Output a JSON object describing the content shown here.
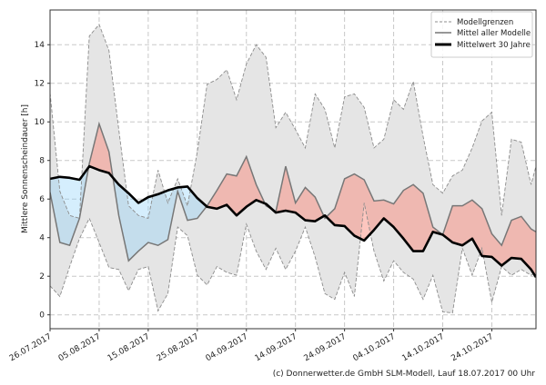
{
  "chart_data": {
    "type": "area",
    "title": "",
    "xlabel": "",
    "ylabel": "Mittlere Sonnenscheindauer [h]",
    "ylim": [
      -0.72,
      15.8
    ],
    "xlim": [
      "26.07.2017",
      "02.11.2017"
    ],
    "yticks": [
      0,
      2,
      4,
      6,
      8,
      10,
      12,
      14
    ],
    "xticks": [
      "26.07.2017",
      "05.08.2017",
      "15.08.2017",
      "25.08.2017",
      "04.09.2017",
      "14.09.2017",
      "24.09.2017",
      "04.10.2017",
      "14.10.2017",
      "24.10.2017"
    ],
    "grid": true,
    "legend_position": "top-right",
    "x": [
      "26.07.2017",
      "28.07.2017",
      "30.07.2017",
      "01.08.2017",
      "03.08.2017",
      "05.08.2017",
      "07.08.2017",
      "09.08.2017",
      "11.08.2017",
      "13.08.2017",
      "15.08.2017",
      "17.08.2017",
      "19.08.2017",
      "21.08.2017",
      "23.08.2017",
      "25.08.2017",
      "27.08.2017",
      "29.08.2017",
      "31.08.2017",
      "02.09.2017",
      "04.09.2017",
      "06.09.2017",
      "08.09.2017",
      "10.09.2017",
      "12.09.2017",
      "14.09.2017",
      "16.09.2017",
      "18.09.2017",
      "20.09.2017",
      "22.09.2017",
      "24.09.2017",
      "26.09.2017",
      "28.09.2017",
      "30.09.2017",
      "02.10.2017",
      "04.10.2017",
      "06.10.2017",
      "08.10.2017",
      "10.10.2017",
      "12.10.2017",
      "14.10.2017",
      "16.10.2017",
      "18.10.2017",
      "20.10.2017",
      "22.10.2017",
      "24.10.2017",
      "26.10.2017",
      "28.10.2017",
      "30.10.2017",
      "01.11.2017",
      "02.11.2017"
    ],
    "series": [
      {
        "name": "Modellgrenzen",
        "role": "upper",
        "style": "dashed",
        "values": [
          11.5,
          6.4,
          5.15,
          5.0,
          14.45,
          15.05,
          13.7,
          9.6,
          5.65,
          5.15,
          5.0,
          7.5,
          5.8,
          7.05,
          5.65,
          8.45,
          11.95,
          12.2,
          12.7,
          11.15,
          13.0,
          14.0,
          13.35,
          9.7,
          10.5,
          9.6,
          8.65,
          11.45,
          10.65,
          8.65,
          11.3,
          11.45,
          10.75,
          8.65,
          9.1,
          11.15,
          10.65,
          12.1,
          9.25,
          6.75,
          6.3,
          7.2,
          7.5,
          8.65,
          10.05,
          10.5,
          5.15,
          9.1,
          8.95,
          6.75,
          7.7
        ]
      },
      {
        "name": "Modellgrenzen",
        "role": "lower",
        "style": "dashed",
        "values": [
          1.5,
          0.95,
          2.5,
          3.95,
          5.0,
          3.75,
          2.45,
          2.35,
          1.25,
          2.35,
          2.5,
          0.2,
          1.1,
          4.55,
          4.1,
          2.05,
          1.55,
          2.5,
          2.2,
          2.05,
          4.7,
          3.3,
          2.35,
          3.45,
          2.35,
          3.3,
          4.55,
          3.0,
          1.1,
          0.8,
          2.2,
          0.95,
          5.8,
          3.3,
          1.75,
          2.8,
          2.2,
          1.85,
          0.8,
          2.05,
          0.15,
          0.1,
          3.45,
          2.05,
          3.45,
          0.65,
          2.5,
          2.05,
          2.35,
          2.05,
          2.2
        ]
      },
      {
        "name": "Mittel aller Modelle",
        "role": "mean",
        "color": "#777777",
        "values": [
          6.35,
          3.75,
          3.6,
          5.0,
          7.85,
          9.9,
          8.45,
          5.15,
          2.8,
          3.3,
          3.75,
          3.6,
          3.9,
          6.4,
          4.9,
          5.0,
          5.65,
          6.45,
          7.3,
          7.2,
          8.2,
          6.75,
          5.65,
          5.35,
          7.7,
          5.8,
          6.6,
          6.1,
          5.0,
          5.5,
          7.05,
          7.3,
          7.0,
          5.9,
          5.95,
          5.75,
          6.45,
          6.75,
          6.3,
          4.55,
          4.15,
          5.65,
          5.65,
          5.95,
          5.5,
          4.2,
          3.6,
          4.9,
          5.1,
          4.45,
          4.3
        ]
      },
      {
        "name": "Mittelwert 30 Jahre",
        "role": "climate",
        "color": "#000000",
        "values": [
          7.05,
          7.15,
          7.1,
          7.0,
          7.7,
          7.5,
          7.35,
          6.75,
          6.3,
          5.8,
          6.1,
          6.25,
          6.45,
          6.6,
          6.65,
          6.05,
          5.6,
          5.5,
          5.7,
          5.15,
          5.6,
          5.95,
          5.75,
          5.3,
          5.4,
          5.3,
          4.9,
          4.85,
          5.15,
          4.65,
          4.6,
          4.1,
          3.85,
          4.4,
          5.0,
          4.55,
          3.95,
          3.3,
          3.3,
          4.3,
          4.15,
          3.75,
          3.6,
          3.95,
          3.05,
          3.0,
          2.55,
          2.95,
          2.9,
          2.35,
          1.95
        ]
      }
    ],
    "colors": {
      "band": "#e5e5e5",
      "bound_line": "#8c8c8c",
      "above_climate": "#fa8072",
      "below_climate": "#87cefa"
    },
    "legend": [
      "Modellgrenzen",
      "Mittel aller Modelle",
      "Mittelwert 30 Jahre"
    ]
  },
  "footer": "(c) Donnerwetter.de GmbH SLM-Modell, Lauf 18.07.2017 00 Uhr"
}
